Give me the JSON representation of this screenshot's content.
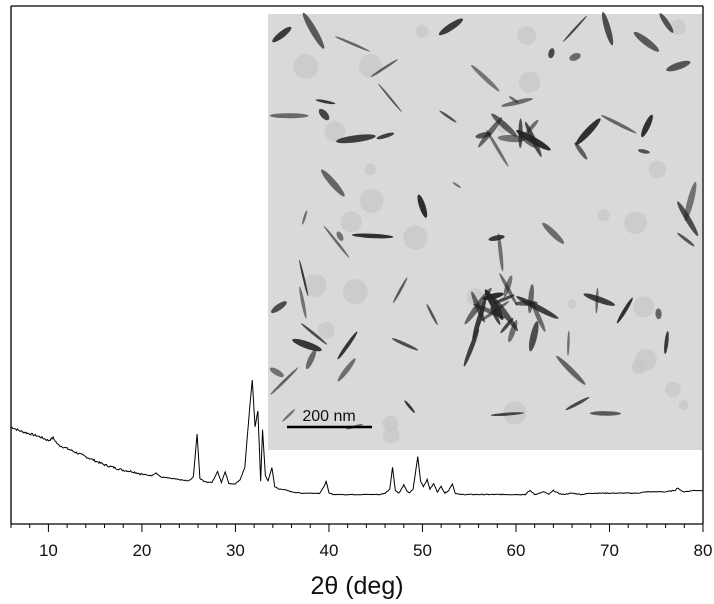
{
  "chart_data": {
    "type": "line",
    "title": "",
    "xlabel": "2θ (deg)",
    "ylabel": "",
    "xlim": [
      6,
      80
    ],
    "xticks": [
      10,
      20,
      30,
      40,
      50,
      60,
      70,
      80
    ],
    "grid": false,
    "legend": "none",
    "series": [
      {
        "x": [
          6,
          7,
          8,
          9,
          10,
          10.5,
          10.8,
          11,
          12,
          13,
          14,
          15,
          16,
          17,
          18,
          19,
          20,
          21,
          21.5,
          22,
          23,
          24,
          25,
          25.5,
          25.9,
          26.2,
          26.6,
          27,
          27.5,
          28.1,
          28.5,
          28.9,
          29.3,
          30,
          30.5,
          31,
          31.5,
          31.8,
          32.1,
          32.4,
          32.7,
          32.9,
          33.2,
          33.5,
          33.9,
          34.2,
          34.6,
          35,
          35.5,
          36,
          37,
          38,
          39,
          39.5,
          39.7,
          40,
          40.5,
          41,
          42,
          43,
          44,
          45,
          45.5,
          46,
          46.5,
          46.8,
          47.1,
          47.5,
          48,
          48.3,
          48.6,
          49,
          49.5,
          49.8,
          50.1,
          50.5,
          50.8,
          51.2,
          51.6,
          52,
          52.4,
          52.8,
          53.2,
          53.5,
          54,
          55,
          56,
          57,
          58,
          59,
          60,
          61,
          61.5,
          62,
          62.5,
          63,
          63.5,
          64,
          64.5,
          65,
          66,
          67,
          68,
          69,
          70,
          71,
          72,
          73,
          74,
          75,
          76,
          77,
          77.3,
          77.6,
          78,
          79,
          80
        ],
        "y": [
          60,
          57,
          55,
          53,
          50,
          52,
          49,
          47,
          44,
          41,
          38,
          35,
          32,
          30,
          28,
          27,
          25,
          24,
          26,
          23,
          22,
          21,
          20,
          23,
          55,
          22,
          20,
          19,
          19,
          27,
          19,
          27,
          18,
          18,
          21,
          30,
          72,
          95,
          60,
          72,
          20,
          58,
          24,
          20,
          30,
          16,
          14,
          14,
          13,
          12,
          11,
          11,
          11,
          16,
          20,
          11,
          10,
          10,
          10,
          10,
          10,
          10,
          10,
          11,
          14,
          30,
          13,
          11,
          17,
          13,
          11,
          14,
          38,
          20,
          16,
          21,
          14,
          18,
          12,
          16,
          11,
          13,
          18,
          11,
          10,
          10,
          10,
          10,
          10,
          10,
          10,
          10,
          13,
          10,
          11,
          12,
          10,
          13,
          11,
          10,
          11,
          10,
          11,
          11,
          11,
          11,
          11,
          11,
          12,
          12,
          12,
          13,
          15,
          13,
          12,
          13,
          13
        ]
      }
    ]
  },
  "inset": {
    "scale_bar_label": "200 nm",
    "background_color": "#d9d9d9",
    "particle_color": "#222222"
  }
}
